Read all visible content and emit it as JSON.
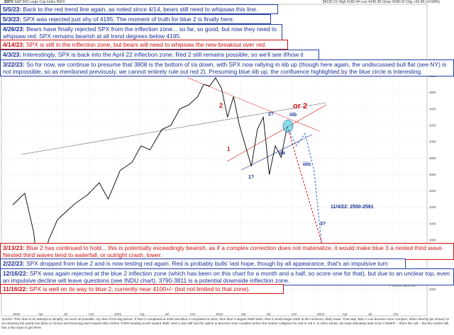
{
  "header": {
    "symbol": "$SPX",
    "name": "S&P 500 Large Cap Index",
    "exchange": "INDX",
    "quote": "$4192.21  High 4192.44  Low 4140.28  Close 4189.02  Chg +24.28 (+0.58%)"
  },
  "notes": [
    {
      "id": "note-5-5",
      "date": "5/5/23:",
      "text": "Back to the red trend line again, as noted since 4/14, bears still need to whipsaw this line.",
      "color": "blue"
    },
    {
      "id": "note-5-3",
      "date": "5/3/23:",
      "text": "SPX was rejected just shy of 4195.  The moment of truth for blue 2 is finally here.",
      "color": "blue"
    },
    {
      "id": "note-4-26",
      "date": "4/26/23:",
      "text": "Bears have finally rejected SPX from the inflection zone... so far, so good, but now they need to whipsaw red.  SPX remains bearish at all trend degrees below 4195.",
      "color": "blue"
    },
    {
      "id": "note-4-14",
      "date": "4/14/23:",
      "text": "SPX is still in the inflection zone, but bears will need to whipsaw the new breakout over red.",
      "color": "red"
    },
    {
      "id": "note-4-3",
      "date": "4/3/23:",
      "text": "Interestingly, SPX is back into the April 22 inflection zone.  Red 2 still remains possible, so we'll see if/how it reacts to this.",
      "color": "blue"
    },
    {
      "id": "note-3-22",
      "date": "3/22/23:",
      "text": "So for now, we continue to presume that 3808 is the bottom of i/a down, with SPX now rallying in iiib up (though here again, the undiscussed bull flat (see NY) is not impossible, so as mentioned previously, we cannot entirely rule out red 2).  Presuming blue iiib up, the confluence highlighted by the blue circle is interesting.",
      "color": "blue"
    },
    {
      "id": "note-3-13",
      "date": "3/13/23:",
      "text": "Blue 2 has continued to hold... this is potentially exceedingly bearish, as if a complex correction does not materialize, it would make blue 3 a nested third wave.  Nested third waves tend to waterfall, or outright crash, lower.",
      "color": "red"
    },
    {
      "id": "note-2-22",
      "date": "2/22/23:",
      "text": "SPX dropped from blue 2 and is now testing red again.  Red is probably bulls' last hope, though by all appearance, that's an impulsive turn down.",
      "color": "blue"
    },
    {
      "id": "note-12-16",
      "date": "12/16/22:",
      "text": "SPX was again rejected at the blue 2 inflection zone (which has been on this chart for a month and a half, so score one for that), but due to an unclear top, even an impulsive decline will leave questions (see INDU chart). 3790-3811 is a potential downside inflection zone.",
      "color": "blue"
    },
    {
      "id": "note-11-16",
      "date": "11/16/22:",
      "text": "SPX is well on its way to blue 2, currently near 4100+/- (but not limited to that zone).",
      "color": "red"
    }
  ],
  "footer_text": "11/4/22: This chart is an attempt to simplify, as much as possible, my view of the big picture. If Red 2 completed at 4325 and Blue 2 completed at 3811, then blue 3 targets 2550-2591. Red 3 would target 2400 at the minimum, likely lower. That said, Blue 2 can become more complex, either directly (as shown) or via retesting the yearly low (blue or minus) and bouncing back toward 3911 before THEN heading south toward 2600. Red 2 also still has the option to become more complex before the market collapses for real in red 3. In other words, all roads ultimately lead much LOWER -- that's the call -- but the market still has a few ways to get there.",
  "annotations": {
    "or_2": "or 2",
    "red_2": "2",
    "red_1": "1",
    "red_3": "3",
    "blue_2q": "2?",
    "blue_1q": "1?",
    "blue_3q": "3?",
    "iiib": "iiib",
    "iia": "i/a",
    "iiic": "iii/c",
    "target": "11/4/22: 2550-2591",
    "stockcharts": "© StockCharts.com"
  },
  "colors": {
    "blue_text": "#1a2f99",
    "red_text": "#d01010",
    "price": "#000000",
    "volume": "#d98a8a",
    "cyan": "#38c8d8"
  },
  "chart_data": {
    "type": "line",
    "title": "$SPX S&P 500 Large Cap Index",
    "ylim": [
      2100,
      4900
    ],
    "y_ticks": [
      2200,
      2400,
      2600,
      2800,
      3000,
      3200,
      3400,
      3600,
      3800,
      4000,
      4200,
      4400,
      4600,
      4800
    ],
    "x_ticks": [
      "2020",
      "Apr",
      "Jul",
      "Oct",
      "2021",
      "Apr",
      "Jul",
      "Oct",
      "2022",
      "Apr",
      "Jul",
      "Oct",
      "2023",
      "Apr",
      "Jul",
      "Oct"
    ],
    "series": [
      {
        "name": "SPX",
        "x": [
          0,
          8,
          14,
          18,
          24,
          30,
          36,
          42,
          50,
          58,
          64,
          72,
          80,
          86,
          92,
          100,
          106,
          112,
          118,
          124,
          128,
          132,
          136,
          140,
          144,
          148,
          152,
          156,
          160,
          164,
          168,
          172,
          176,
          180,
          184
        ],
        "values": [
          3230,
          3370,
          2900,
          2230,
          2800,
          3050,
          3150,
          3250,
          3350,
          3500,
          3300,
          3650,
          3750,
          3950,
          3900,
          4150,
          4200,
          4400,
          4450,
          4550,
          4700,
          4680,
          4780,
          4650,
          4300,
          4550,
          4200,
          3950,
          3700,
          4150,
          4300,
          3600,
          3950,
          3810,
          4190
        ]
      }
    ],
    "forecast_blue": {
      "name": "blue path",
      "x": [
        184,
        190,
        196,
        202,
        208
      ],
      "values": [
        4190,
        3950,
        4100,
        3650,
        2580
      ]
    },
    "forecast_red": {
      "name": "red path",
      "x": [
        184,
        200,
        215
      ],
      "values": [
        4190,
        3200,
        2300
      ]
    }
  }
}
